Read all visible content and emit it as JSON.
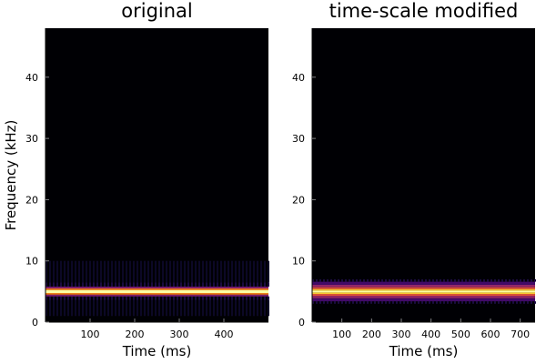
{
  "chart_data": [
    {
      "type": "heatmap",
      "title": "original",
      "xlabel": "Time (ms)",
      "ylabel": "Frequency (kHz)",
      "xlim": [
        0,
        500
      ],
      "ylim": [
        0,
        48
      ],
      "xticks": [
        100,
        200,
        300,
        400
      ],
      "yticks": [
        0,
        10,
        20,
        30,
        40
      ],
      "colormap": "inferno",
      "background": "#000004",
      "band": {
        "center_khz": 5.0,
        "bands": [
          {
            "from": 1.0,
            "to": 3.6,
            "color": "#0c0826",
            "pattern": "striped"
          },
          {
            "from": 3.6,
            "to": 4.2,
            "color": "#1b0c41",
            "pattern": "striped"
          },
          {
            "from": 4.2,
            "to": 4.5,
            "color": "#7a1d6d",
            "pattern": "solid"
          },
          {
            "from": 4.5,
            "to": 4.75,
            "color": "#f57d15",
            "pattern": "solid"
          },
          {
            "from": 4.75,
            "to": 5.25,
            "color": "#fcffa4",
            "pattern": "solid"
          },
          {
            "from": 5.25,
            "to": 5.5,
            "color": "#f57d15",
            "pattern": "solid"
          },
          {
            "from": 5.5,
            "to": 5.8,
            "color": "#7a1d6d",
            "pattern": "solid"
          },
          {
            "from": 5.8,
            "to": 6.5,
            "color": "#1b0c41",
            "pattern": "striped"
          },
          {
            "from": 6.5,
            "to": 10.0,
            "color": "#0c0826",
            "pattern": "striped"
          }
        ]
      }
    },
    {
      "type": "heatmap",
      "title": "time-scale modified",
      "xlabel": "Time (ms)",
      "ylabel": "",
      "xlim": [
        0,
        750
      ],
      "ylim": [
        0,
        48
      ],
      "xticks": [
        100,
        200,
        300,
        400,
        500,
        600,
        700
      ],
      "yticks": [
        0,
        10,
        20,
        30,
        40
      ],
      "colormap": "inferno",
      "background": "#000004",
      "band": {
        "center_khz": 5.0,
        "bands": [
          {
            "from": 3.0,
            "to": 3.4,
            "color": "#1b0c41",
            "pattern": "striped"
          },
          {
            "from": 3.4,
            "to": 3.9,
            "color": "#420a68",
            "pattern": "solid"
          },
          {
            "from": 3.9,
            "to": 4.3,
            "color": "#932667",
            "pattern": "solid"
          },
          {
            "from": 4.3,
            "to": 4.6,
            "color": "#dd513a",
            "pattern": "solid"
          },
          {
            "from": 4.6,
            "to": 4.85,
            "color": "#f8c931",
            "pattern": "solid"
          },
          {
            "from": 4.85,
            "to": 5.15,
            "color": "#fcffa4",
            "pattern": "solid"
          },
          {
            "from": 5.15,
            "to": 5.4,
            "color": "#f8c931",
            "pattern": "solid"
          },
          {
            "from": 5.4,
            "to": 5.7,
            "color": "#dd513a",
            "pattern": "solid"
          },
          {
            "from": 5.7,
            "to": 6.1,
            "color": "#932667",
            "pattern": "solid"
          },
          {
            "from": 6.1,
            "to": 6.6,
            "color": "#420a68",
            "pattern": "solid"
          },
          {
            "from": 6.6,
            "to": 7.0,
            "color": "#1b0c41",
            "pattern": "striped"
          }
        ]
      }
    }
  ]
}
